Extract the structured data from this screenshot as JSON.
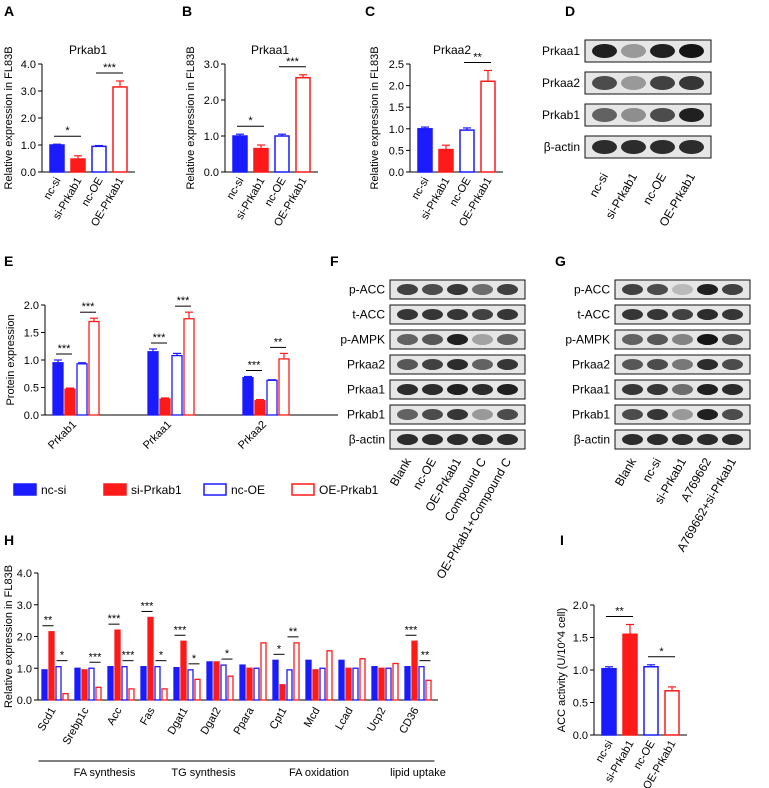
{
  "colors": {
    "nc_si": "#1b1bff",
    "si": "#ff1a1a",
    "nc_oe": "#1b1bff",
    "oe": "#ff1a1a"
  },
  "panels": {
    "A": "A",
    "B": "B",
    "C": "C",
    "D": "D",
    "E": "E",
    "F": "F",
    "G": "G",
    "H": "H",
    "I": "I"
  },
  "legend": {
    "nc_si": "nc-si",
    "si": "si-Prkab1",
    "nc_oe": "nc-OE",
    "oe": "OE-Prkab1"
  },
  "blot_D": {
    "rows": [
      "Prkaa1",
      "Prkaa2",
      "Prkab1",
      "β-actin"
    ],
    "lanes": [
      "nc-si",
      "si-Prkab1",
      "nc-OE",
      "OE-Prkab1"
    ]
  },
  "blot_F": {
    "rows": [
      "p-ACC",
      "t-ACC",
      "p-AMPK",
      "Prkaa2",
      "Prkaa1",
      "Prkab1",
      "β-actin"
    ],
    "lanes": [
      "Blank",
      "nc-OE",
      "OE-Prkab1",
      "Compound C",
      "OE-Prkab1+Compound C"
    ]
  },
  "blot_G": {
    "rows": [
      "p-ACC",
      "t-ACC",
      "p-AMPK",
      "Prkaa2",
      "Prkaa1",
      "Prkab1",
      "β-actin"
    ],
    "lanes": [
      "Blank",
      "nc-si",
      "si-Prkab1",
      "A769662",
      "A769662+si-Prkab1"
    ]
  },
  "chart_data": [
    {
      "id": "A",
      "type": "bar",
      "title": "Prkab1",
      "ylabel": "Relative expression in FL83B",
      "ylim": [
        0,
        4
      ],
      "yticks": [
        "0.0",
        "1.0",
        "2.0",
        "3.0",
        "4.0"
      ],
      "categories": [
        "nc-si",
        "si-Prkab1",
        "nc-OE",
        "OE-Prkab1"
      ],
      "values": [
        1.0,
        0.48,
        0.95,
        3.15
      ],
      "errors": [
        0.03,
        0.12,
        0.03,
        0.22
      ],
      "sig": [
        {
          "from": 0,
          "to": 1,
          "label": "*"
        },
        {
          "from": 2,
          "to": 3,
          "label": "***"
        }
      ]
    },
    {
      "id": "B",
      "type": "bar",
      "title": "Prkaa1",
      "ylabel": "Relative expression in FL83B",
      "ylim": [
        0,
        3
      ],
      "yticks": [
        "0.0",
        "1.0",
        "2.0",
        "3.0"
      ],
      "categories": [
        "nc-si",
        "si-Prkab1",
        "nc-OE",
        "OE-Prkab1"
      ],
      "values": [
        1.0,
        0.65,
        1.0,
        2.62
      ],
      "errors": [
        0.05,
        0.1,
        0.05,
        0.08
      ],
      "sig": [
        {
          "from": 0,
          "to": 1,
          "label": "*"
        },
        {
          "from": 2,
          "to": 3,
          "label": "***"
        }
      ]
    },
    {
      "id": "C",
      "type": "bar",
      "title": "Prkaa2",
      "ylabel": "Relative expression in FL83B",
      "ylim": [
        0,
        2.5
      ],
      "yticks": [
        "0.0",
        "0.5",
        "1.0",
        "1.5",
        "2.0",
        "2.5"
      ],
      "categories": [
        "nc-si",
        "si-Prkab1",
        "nc-OE",
        "OE-Prkab1"
      ],
      "values": [
        1.0,
        0.52,
        0.97,
        2.1
      ],
      "errors": [
        0.04,
        0.1,
        0.05,
        0.25
      ],
      "sig": [
        {
          "from": 2,
          "to": 3,
          "label": "**"
        }
      ]
    },
    {
      "id": "E",
      "type": "bar",
      "ylabel": "Protein expression",
      "ylim": [
        0,
        2.0
      ],
      "yticks": [
        "0.0",
        "0.5",
        "1.0",
        "1.5",
        "2.0"
      ],
      "categories": [
        "Prkab1",
        "Prkaa1",
        "Prkaa2"
      ],
      "series": [
        {
          "name": "nc-si",
          "values": [
            0.95,
            1.15,
            0.68
          ],
          "errors": [
            0.05,
            0.05,
            0.02
          ]
        },
        {
          "name": "si-Prkab1",
          "values": [
            0.47,
            0.29,
            0.26
          ],
          "errors": [
            0.02,
            0.02,
            0.02
          ]
        },
        {
          "name": "nc-OE",
          "values": [
            0.93,
            1.08,
            0.63
          ],
          "errors": [
            0.02,
            0.04,
            0.01
          ]
        },
        {
          "name": "OE-Prkab1",
          "values": [
            1.7,
            1.75,
            1.02
          ],
          "errors": [
            0.06,
            0.12,
            0.1
          ]
        }
      ],
      "sig": [
        {
          "cat": 0,
          "pair": 0,
          "label": "***"
        },
        {
          "cat": 0,
          "pair": 1,
          "label": "***"
        },
        {
          "cat": 1,
          "pair": 0,
          "label": "***"
        },
        {
          "cat": 1,
          "pair": 1,
          "label": "***"
        },
        {
          "cat": 2,
          "pair": 0,
          "label": "***"
        },
        {
          "cat": 2,
          "pair": 1,
          "label": "**"
        }
      ]
    },
    {
      "id": "H",
      "type": "bar",
      "ylabel": "Relative expression in FL83B",
      "ylim": [
        0,
        4
      ],
      "yticks": [
        "0.0",
        "1.0",
        "2.0",
        "3.0",
        "4.0"
      ],
      "categories": [
        "Scd1",
        "Srebp1c",
        "Acc",
        "Fas",
        "Dgat1",
        "Dgat2",
        "Ppara",
        "Cpt1",
        "Mcd",
        "Lcad",
        "Ucp2",
        "CD36"
      ],
      "series": [
        {
          "name": "nc-si",
          "values": [
            0.95,
            1.0,
            1.05,
            1.05,
            1.02,
            1.2,
            1.1,
            1.25,
            1.25,
            1.25,
            1.05,
            1.05
          ]
        },
        {
          "name": "si-Prkab1",
          "values": [
            2.15,
            0.95,
            2.2,
            2.6,
            1.85,
            1.2,
            1.0,
            0.48,
            0.95,
            1.0,
            1.0,
            1.85
          ]
        },
        {
          "name": "nc-OE",
          "values": [
            1.05,
            1.0,
            1.05,
            1.05,
            0.95,
            1.1,
            1.0,
            0.95,
            1.0,
            1.0,
            1.0,
            1.05
          ]
        },
        {
          "name": "OE-Prkab1",
          "values": [
            0.2,
            0.4,
            0.35,
            0.35,
            0.65,
            0.75,
            1.8,
            1.8,
            1.55,
            1.3,
            1.15,
            0.62
          ]
        }
      ],
      "sig": [
        {
          "cat": 0,
          "pair": 0,
          "label": "**"
        },
        {
          "cat": 0,
          "pair": 1,
          "label": "*"
        },
        {
          "cat": 1,
          "pair": 1,
          "label": "***"
        },
        {
          "cat": 2,
          "pair": 0,
          "label": "***"
        },
        {
          "cat": 2,
          "pair": 1,
          "label": "***"
        },
        {
          "cat": 3,
          "pair": 0,
          "label": "***"
        },
        {
          "cat": 3,
          "pair": 1,
          "label": "*"
        },
        {
          "cat": 4,
          "pair": 0,
          "label": "***"
        },
        {
          "cat": 4,
          "pair": 1,
          "label": "*"
        },
        {
          "cat": 5,
          "pair": 1,
          "label": "*"
        },
        {
          "cat": 7,
          "pair": 0,
          "label": "*"
        },
        {
          "cat": 7,
          "pair": 1,
          "label": "**"
        },
        {
          "cat": 11,
          "pair": 0,
          "label": "***"
        },
        {
          "cat": 11,
          "pair": 1,
          "label": "**"
        }
      ],
      "groups": [
        {
          "label": "FA synthesis",
          "from": 0,
          "to": 3
        },
        {
          "label": "TG synthesis",
          "from": 4,
          "to": 5
        },
        {
          "label": "FA oxidation",
          "from": 6,
          "to": 10
        },
        {
          "label": "lipid uptake",
          "from": 11,
          "to": 11
        }
      ]
    },
    {
      "id": "I",
      "type": "bar",
      "ylabel": "ACC activity (U/10^4 cell)",
      "ylim": [
        0,
        2.0
      ],
      "yticks": [
        "0.0",
        "0.5",
        "1.0",
        "1.5",
        "2.0"
      ],
      "categories": [
        "nc-si",
        "si-Prkab1",
        "nc-OE",
        "OE-Prkab1"
      ],
      "values": [
        1.02,
        1.55,
        1.05,
        0.68
      ],
      "errors": [
        0.03,
        0.15,
        0.03,
        0.06
      ],
      "sig": [
        {
          "from": 0,
          "to": 1,
          "label": "**"
        },
        {
          "from": 2,
          "to": 3,
          "label": "*"
        }
      ]
    }
  ]
}
